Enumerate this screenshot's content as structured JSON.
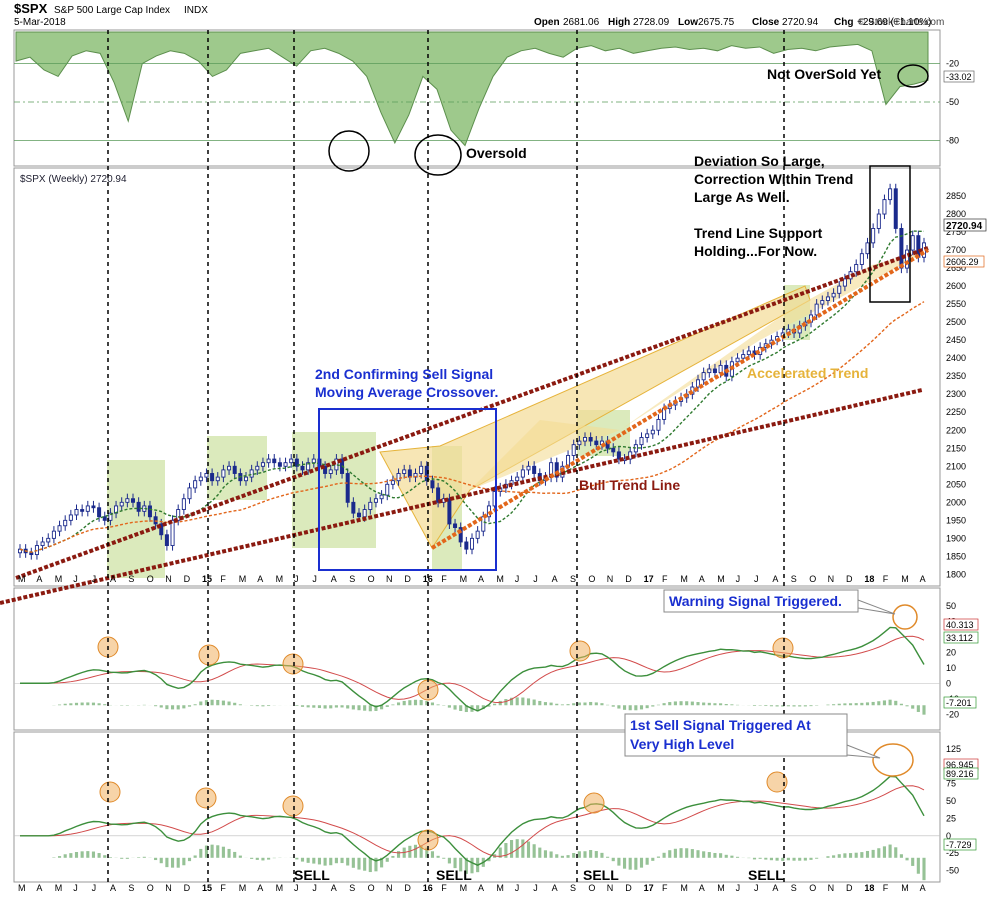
{
  "header": {
    "symbol": "$SPX",
    "name": "S&P 500 Large Cap Index",
    "exchange": "INDX",
    "date": "5-Mar-2018",
    "open_label": "Open",
    "open": "2681.06",
    "high_label": "High",
    "high": "2728.09",
    "low_label": "Low",
    "low": "2675.75",
    "close_label": "Close",
    "close": "2720.94",
    "chg_label": "Chg",
    "chg": "+29.69 (+1.10%)",
    "watermark": "© StockCharts.com"
  },
  "colors": {
    "candle_up": "#1b2a8c",
    "candle_down": "#1b2a8c",
    "rsi_fill": "#8dbf78",
    "trend_dark_red": "#8b1a10",
    "trend_orange": "#e2661b",
    "yellow_shade": "#f3dc95",
    "green_shade": "#cfe3a6",
    "blue_box": "#1a2fd0",
    "annotation_blue": "#1a2fd0",
    "annotation_orange": "#e6b33a",
    "annotation_red": "#8b1a10",
    "signal_circle": "#f0b060"
  },
  "chart_data": [
    {
      "panel": "rsi",
      "type": "line",
      "y_ticks": [
        "-20",
        "-50",
        "-80"
      ],
      "ylim": [
        -100,
        0
      ],
      "last_value": "-33.02",
      "values": [
        -18,
        -15,
        -25,
        -30,
        -14,
        -10,
        -12,
        -35,
        -65,
        -20,
        -14,
        -10,
        -12,
        -18,
        -30,
        -25,
        -12,
        -10,
        -8,
        -15,
        -22,
        -10,
        -8,
        -12,
        -18,
        -30,
        -58,
        -82,
        -60,
        -30,
        -40,
        -72,
        -84,
        -55,
        -30,
        -15,
        -10,
        -8,
        -12,
        -15,
        -8,
        -6,
        -10,
        -8,
        -12,
        -10,
        -8,
        -7,
        -9,
        -8,
        -10,
        -6,
        -8,
        -7,
        -12,
        -9,
        -8,
        -10,
        -7,
        -6,
        -5,
        -10,
        -52,
        -38,
        -36,
        -33
      ]
    },
    {
      "panel": "price",
      "type": "candlestick",
      "label": "$SPX (Weekly) 2720.94",
      "ylim": [
        1790,
        2900
      ],
      "y_ticks": [
        "2850",
        "2800",
        "2750",
        "2700",
        "2650",
        "2600",
        "2550",
        "2500",
        "2450",
        "2400",
        "2350",
        "2300",
        "2250",
        "2200",
        "2150",
        "2100",
        "2050",
        "2000",
        "1950",
        "1900",
        "1850",
        "1800"
      ],
      "last_value_label": "2720.94",
      "ma_label": "2606.29",
      "x_labels": [
        "M",
        "A",
        "M",
        "J",
        "J",
        "A",
        "S",
        "O",
        "N",
        "D",
        "15",
        "F",
        "M",
        "A",
        "M",
        "J",
        "J",
        "A",
        "S",
        "O",
        "N",
        "D",
        "16",
        "F",
        "M",
        "A",
        "M",
        "J",
        "J",
        "A",
        "S",
        "O",
        "N",
        "D",
        "17",
        "F",
        "M",
        "A",
        "M",
        "J",
        "J",
        "A",
        "S",
        "O",
        "N",
        "D",
        "18",
        "F",
        "M",
        "A"
      ],
      "closes": [
        1870,
        1860,
        1855,
        1880,
        1890,
        1900,
        1920,
        1935,
        1950,
        1965,
        1980,
        1975,
        1990,
        1985,
        1960,
        1950,
        1970,
        1990,
        2000,
        2010,
        2000,
        1975,
        1990,
        1960,
        1940,
        1910,
        1880,
        1950,
        1980,
        2010,
        2040,
        2060,
        2070,
        2080,
        2060,
        2070,
        2090,
        2100,
        2080,
        2060,
        2070,
        2090,
        2100,
        2110,
        2120,
        2110,
        2100,
        2110,
        2120,
        2100,
        2090,
        2110,
        2120,
        2100,
        2080,
        2090,
        2120,
        2080,
        2000,
        1970,
        1960,
        1980,
        2000,
        2010,
        2020,
        2050,
        2060,
        2080,
        2090,
        2070,
        2080,
        2100,
        2060,
        2040,
        2000,
        2010,
        1940,
        1930,
        1890,
        1870,
        1900,
        1920,
        1960,
        1990,
        2030,
        2040,
        2050,
        2060,
        2070,
        2090,
        2100,
        2080,
        2060,
        2070,
        2110,
        2070,
        2100,
        2130,
        2160,
        2170,
        2180,
        2170,
        2160,
        2170,
        2150,
        2140,
        2120,
        2120,
        2140,
        2160,
        2180,
        2190,
        2200,
        2230,
        2260,
        2270,
        2280,
        2290,
        2300,
        2320,
        2340,
        2360,
        2370,
        2360,
        2380,
        2350,
        2390,
        2400,
        2410,
        2420,
        2410,
        2430,
        2440,
        2450,
        2460,
        2470,
        2480,
        2470,
        2490,
        2500,
        2520,
        2550,
        2560,
        2570,
        2580,
        2600,
        2620,
        2640,
        2660,
        2690,
        2720,
        2760,
        2800,
        2840,
        2870,
        2760,
        2650,
        2700,
        2740,
        2680,
        2720
      ],
      "trend_lines": [
        "Bull Trend Line",
        "Accelerated Trend"
      ]
    },
    {
      "panel": "macd_1",
      "type": "line",
      "y_ticks": [
        "50",
        "40",
        "30",
        "20",
        "10",
        "0",
        "-10",
        "-20"
      ],
      "ylim": [
        -25,
        55
      ],
      "value_labels": [
        "40.313",
        "33.112",
        "-7.201"
      ]
    },
    {
      "panel": "macd_2",
      "type": "line",
      "y_ticks": [
        "125",
        "100",
        "75",
        "50",
        "25",
        "0",
        "-25",
        "-50"
      ],
      "ylim": [
        -55,
        135
      ],
      "value_labels": [
        "96.945",
        "89.216",
        "-7.729"
      ]
    }
  ],
  "annotations": {
    "not_oversold": "Not OverSold Yet",
    "oversold": "Oversold",
    "deviation": [
      "Deviation So Large,",
      "Correction Within Trend",
      "Large As Well."
    ],
    "trend_support": [
      "Trend Line Support",
      "Holding...For Now."
    ],
    "second_sell": [
      "2nd Confirming Sell Signal",
      "Moving Average Crossover."
    ],
    "accelerated_trend": "Accelerated Trend",
    "bull_trend_line": "Bull Trend Line",
    "warning_signal": "Warning Signal Triggered.",
    "first_sell": [
      "1st Sell Signal Triggered At",
      "Very High Level"
    ],
    "sell_labels": [
      "SELL",
      "SELL",
      "SELL",
      "SELL"
    ]
  }
}
